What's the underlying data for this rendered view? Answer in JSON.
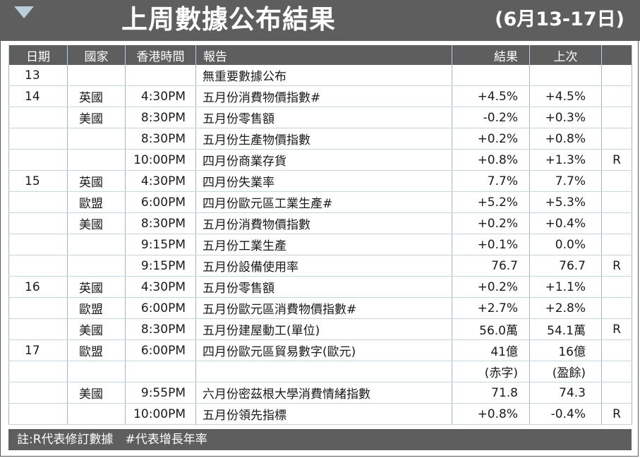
{
  "header": {
    "title": "上周數據公布結果",
    "date_range": "(6月13-17日)",
    "marker_icon": "triangle-down-icon",
    "accent_color": "#b9cdda",
    "bar_color": "#5e5e5e"
  },
  "table": {
    "columns": [
      "日期",
      "國家",
      "香港時間",
      "報告",
      "結果",
      "上次",
      ""
    ],
    "rows": [
      {
        "date": "13",
        "country": "",
        "time": "",
        "report": "無重要數據公布",
        "result": "",
        "previous": "",
        "revised": ""
      },
      {
        "date": "14",
        "country": "英國",
        "time": "4:30PM",
        "report": "五月份消費物價指數#",
        "result": "+4.5%",
        "previous": "+4.5%",
        "revised": ""
      },
      {
        "date": "",
        "country": "美國",
        "time": "8:30PM",
        "report": "五月份零售額",
        "result": "-0.2%",
        "previous": "+0.3%",
        "revised": ""
      },
      {
        "date": "",
        "country": "",
        "time": "8:30PM",
        "report": "五月份生產物價指數",
        "result": "+0.2%",
        "previous": "+0.8%",
        "revised": ""
      },
      {
        "date": "",
        "country": "",
        "time": "10:00PM",
        "report": "四月份商業存貨",
        "result": "+0.8%",
        "previous": "+1.3%",
        "revised": "R"
      },
      {
        "date": "15",
        "country": "英國",
        "time": "4:30PM",
        "report": "四月份失業率",
        "result": "7.7%",
        "previous": "7.7%",
        "revised": ""
      },
      {
        "date": "",
        "country": "歐盟",
        "time": "6:00PM",
        "report": "四月份歐元區工業生產#",
        "result": "+5.2%",
        "previous": "+5.3%",
        "revised": ""
      },
      {
        "date": "",
        "country": "美國",
        "time": "8:30PM",
        "report": "五月份消費物價指數",
        "result": "+0.2%",
        "previous": "+0.4%",
        "revised": ""
      },
      {
        "date": "",
        "country": "",
        "time": "9:15PM",
        "report": "五月份工業生產",
        "result": "+0.1%",
        "previous": "0.0%",
        "revised": ""
      },
      {
        "date": "",
        "country": "",
        "time": "9:15PM",
        "report": "五月份設備使用率",
        "result": "76.7",
        "previous": "76.7",
        "revised": "R"
      },
      {
        "date": "16",
        "country": "英國",
        "time": "4:30PM",
        "report": "五月份零售額",
        "result": "+0.2%",
        "previous": "+1.1%",
        "revised": ""
      },
      {
        "date": "",
        "country": "歐盟",
        "time": "6:00PM",
        "report": "五月份歐元區消費物價指數#",
        "result": "+2.7%",
        "previous": "+2.8%",
        "revised": ""
      },
      {
        "date": "",
        "country": "美國",
        "time": "8:30PM",
        "report": "五月份建屋動工(單位)",
        "result": "56.0萬",
        "previous": "54.1萬",
        "revised": "R"
      },
      {
        "date": "17",
        "country": "歐盟",
        "time": "6:00PM",
        "report": "四月份歐元區貿易數字(歐元)",
        "result": "41億",
        "previous": "16億",
        "revised": ""
      },
      {
        "date": "",
        "country": "",
        "time": "",
        "report": "",
        "result": "(赤字)",
        "previous": "(盈餘)",
        "revised": ""
      },
      {
        "date": "",
        "country": "美國",
        "time": "9:55PM",
        "report": "六月份密茲根大學消費情緒指數",
        "result": "71.8",
        "previous": "74.3",
        "revised": ""
      },
      {
        "date": "",
        "country": "",
        "time": "10:00PM",
        "report": "五月份領先指標",
        "result": "+0.8%",
        "previous": "-0.4%",
        "revised": "R"
      }
    ]
  },
  "footer": {
    "note": "註:R代表修訂數據　#代表增長年率"
  }
}
